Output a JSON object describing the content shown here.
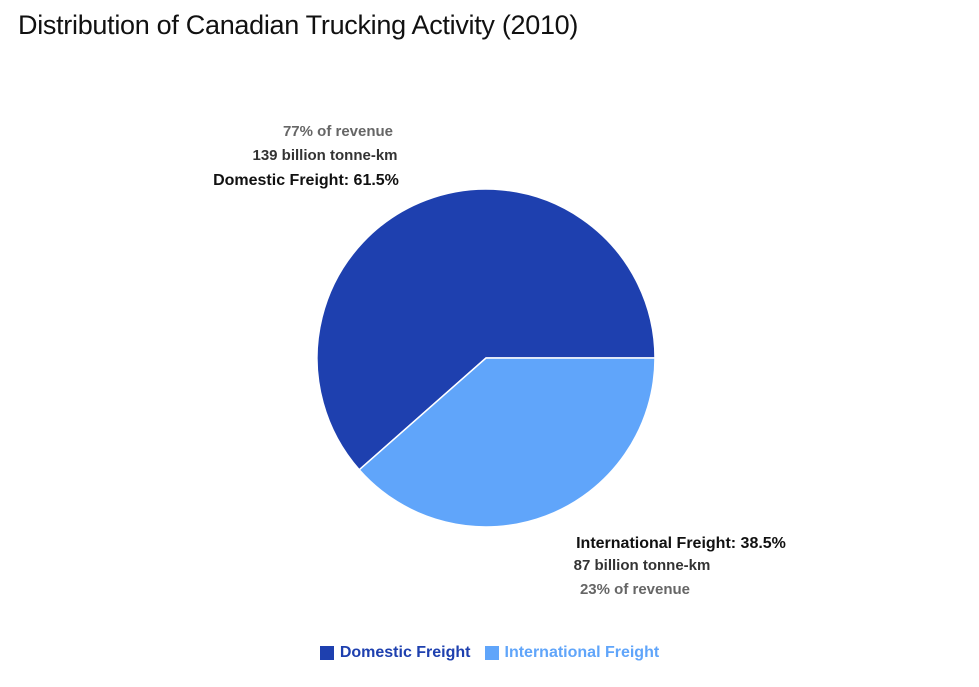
{
  "chart_data": {
    "type": "pie",
    "title": "Distribution of Canadian Trucking Activity (2010)",
    "slices": [
      {
        "name": "Domestic Freight",
        "value": 61.5,
        "label": "Domestic Freight: 61.5%",
        "tonne_km": "139 billion tonne-km",
        "revenue": "77% of revenue",
        "color": "#1e40af"
      },
      {
        "name": "International Freight",
        "value": 38.5,
        "label": "International Freight: 38.5%",
        "tonne_km": "87 billion tonne-km",
        "revenue": "23% of revenue",
        "color": "#60a5fa"
      }
    ],
    "legend_position": "bottom"
  }
}
